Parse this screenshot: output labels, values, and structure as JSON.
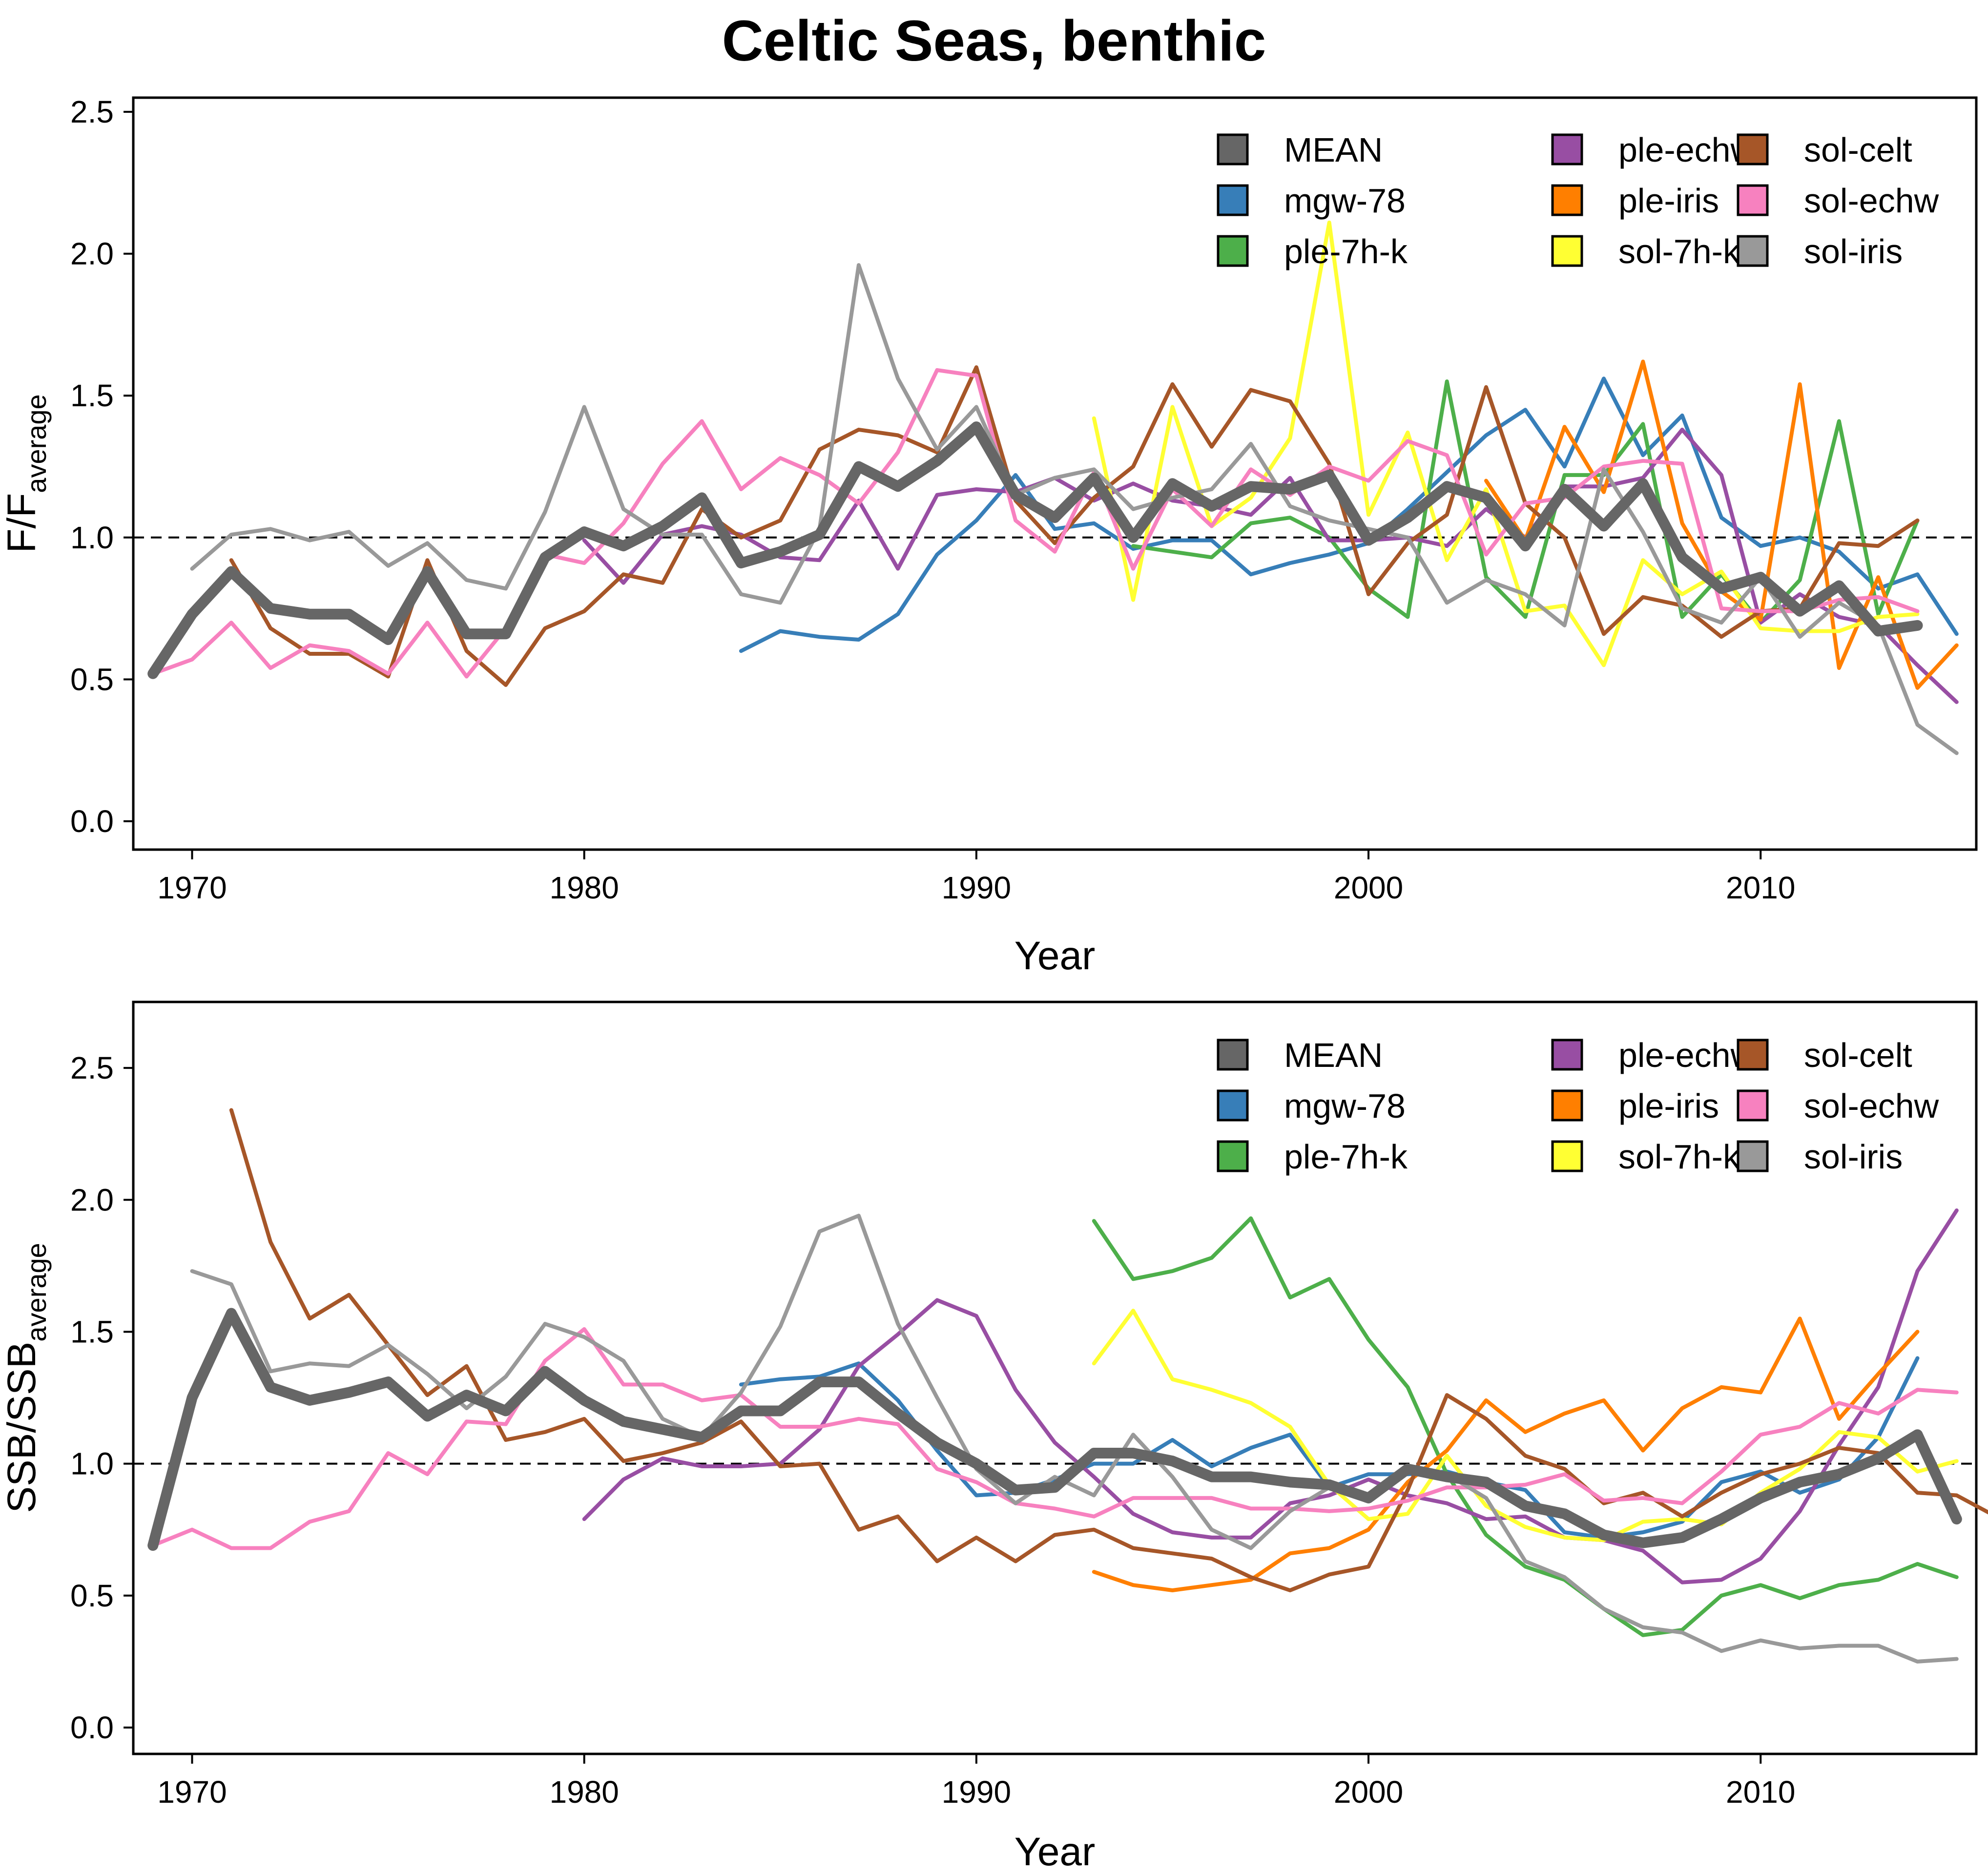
{
  "title": "Celtic Seas, benthic",
  "chart_data": [
    {
      "type": "line",
      "ylabel_main": "F/F",
      "ylabel_sub": "average",
      "xlabel": "Year",
      "xlim": [
        1968.5,
        2015.5
      ],
      "ylim": [
        -0.1,
        2.55
      ],
      "xticks": [
        "1970",
        "1980",
        "1990",
        "2000",
        "2010"
      ],
      "yticks": [
        "0.0",
        "0.5",
        "1.0",
        "1.5",
        "2.0",
        "2.5"
      ],
      "reference_line": 1.0,
      "grid": false,
      "legend_position": "top-right",
      "series": [
        {
          "name": "mgw-78",
          "color": "#377eb8",
          "start": 1984,
          "values": [
            0.6,
            0.67,
            0.65,
            0.64,
            0.73,
            0.94,
            1.06,
            1.22,
            1.03,
            1.05,
            0.96,
            0.99,
            0.99,
            0.87,
            0.91,
            0.94,
            0.98,
            1.1,
            1.23,
            1.36,
            1.45,
            1.25,
            1.56,
            1.29,
            1.43,
            1.07,
            0.97,
            1.0,
            0.95,
            0.82,
            0.87,
            0.66
          ]
        },
        {
          "name": "ple-7h-k",
          "color": "#4daf4a",
          "start": 1994,
          "values": [
            0.97,
            0.95,
            0.93,
            1.05,
            1.07,
            1.0,
            0.82,
            0.72,
            1.55,
            0.86,
            0.72,
            1.22,
            1.22,
            1.4,
            0.72,
            0.87,
            0.7,
            0.85,
            1.41,
            0.73,
            1.06
          ]
        },
        {
          "name": "ple-echw",
          "color": "#984ea3",
          "start": 1980,
          "values": [
            0.99,
            0.84,
            1.01,
            1.04,
            1.01,
            0.93,
            0.92,
            1.13,
            0.89,
            1.15,
            1.17,
            1.16,
            1.21,
            1.13,
            1.19,
            1.13,
            1.11,
            1.08,
            1.21,
            0.99,
            0.99,
            1.0,
            0.97,
            1.1,
            1.0,
            1.18,
            1.18,
            1.21,
            1.38,
            1.22,
            0.7,
            0.8,
            0.72,
            0.69,
            0.55,
            0.42
          ]
        },
        {
          "name": "ple-iris",
          "color": "#ff7f00",
          "start": 2003,
          "values": [
            1.2,
            0.99,
            1.39,
            1.16,
            1.62,
            1.05,
            0.81,
            0.71,
            1.54,
            0.54,
            0.86,
            0.47,
            0.62
          ]
        },
        {
          "name": "sol-7h-k",
          "color": "#ffff33",
          "start": 1993,
          "values": [
            1.42,
            0.78,
            1.46,
            1.04,
            1.14,
            1.35,
            2.11,
            1.08,
            1.37,
            0.92,
            1.17,
            0.74,
            0.76,
            0.55,
            0.92,
            0.8,
            0.88,
            0.68,
            0.67,
            0.67,
            0.72,
            0.73
          ]
        },
        {
          "name": "sol-celt",
          "color": "#a65628",
          "start": 1971,
          "values": [
            0.92,
            0.68,
            0.59,
            0.59,
            0.51,
            0.92,
            0.6,
            0.48,
            0.68,
            0.74,
            0.87,
            0.84,
            1.1,
            1.0,
            1.06,
            1.31,
            1.38,
            1.36,
            1.3,
            1.6,
            1.13,
            0.98,
            1.14,
            1.25,
            1.54,
            1.32,
            1.52,
            1.48,
            1.26,
            0.8,
            0.98,
            1.08,
            1.53,
            1.12,
            1.0,
            0.66,
            0.79,
            0.76,
            0.65,
            0.74,
            0.75,
            0.98,
            0.97,
            1.06
          ]
        },
        {
          "name": "sol-echw",
          "color": "#f781bf",
          "start": 1969,
          "values": [
            0.52,
            0.57,
            0.7,
            0.54,
            0.62,
            0.6,
            0.52,
            0.7,
            0.51,
            0.68,
            0.94,
            0.91,
            1.05,
            1.26,
            1.41,
            1.17,
            1.28,
            1.22,
            1.12,
            1.3,
            1.59,
            1.57,
            1.06,
            0.95,
            1.23,
            0.89,
            1.17,
            1.04,
            1.24,
            1.15,
            1.25,
            1.2,
            1.34,
            1.29,
            0.94,
            1.12,
            1.14,
            1.25,
            1.27,
            1.26,
            0.75,
            0.74,
            0.74,
            0.78,
            0.79,
            0.74
          ]
        },
        {
          "name": "sol-iris",
          "color": "#999999",
          "start": 1970,
          "values": [
            0.89,
            1.01,
            1.03,
            0.99,
            1.02,
            0.9,
            0.98,
            0.85,
            0.82,
            1.09,
            1.46,
            1.1,
            1.01,
            1.01,
            0.8,
            0.77,
            1.03,
            1.96,
            1.56,
            1.31,
            1.46,
            1.15,
            1.21,
            1.24,
            1.1,
            1.14,
            1.17,
            1.33,
            1.11,
            1.06,
            1.03,
            1.0,
            0.77,
            0.85,
            0.8,
            0.69,
            1.24,
            1.02,
            0.75,
            0.7,
            0.86,
            0.65,
            0.77,
            0.69,
            0.34,
            0.24
          ]
        },
        {
          "name": "MEAN",
          "color": "#666666",
          "start": 1969,
          "values": [
            0.52,
            0.73,
            0.88,
            0.75,
            0.73,
            0.73,
            0.64,
            0.88,
            0.66,
            0.66,
            0.93,
            1.02,
            0.97,
            1.04,
            1.14,
            0.91,
            0.95,
            1.01,
            1.25,
            1.18,
            1.27,
            1.39,
            1.15,
            1.07,
            1.21,
            1.0,
            1.19,
            1.11,
            1.18,
            1.17,
            1.22,
            0.99,
            1.07,
            1.18,
            1.14,
            0.97,
            1.17,
            1.04,
            1.19,
            0.93,
            0.82,
            0.86,
            0.74,
            0.83,
            0.67,
            0.69
          ]
        }
      ]
    },
    {
      "type": "line",
      "ylabel_main": "SSB/SSB",
      "ylabel_sub": "average",
      "xlabel": "Year",
      "xlim": [
        1968.5,
        2015.5
      ],
      "ylim": [
        -0.1,
        2.75
      ],
      "xticks": [
        "1970",
        "1980",
        "1990",
        "2000",
        "2010"
      ],
      "yticks": [
        "0.0",
        "0.5",
        "1.0",
        "1.5",
        "2.0",
        "2.5"
      ],
      "reference_line": 1.0,
      "grid": false,
      "legend_position": "top-right",
      "series": [
        {
          "name": "mgw-78",
          "color": "#377eb8",
          "start": 1984,
          "values": [
            1.3,
            1.32,
            1.33,
            1.38,
            1.24,
            1.05,
            0.88,
            0.89,
            0.94,
            1.0,
            1.0,
            1.09,
            0.99,
            1.06,
            1.11,
            0.91,
            0.96,
            0.96,
            0.97,
            0.93,
            0.9,
            0.74,
            0.72,
            0.74,
            0.78,
            0.93,
            0.97,
            0.89,
            0.94,
            1.1,
            1.4
          ]
        },
        {
          "name": "ple-7h-k",
          "color": "#4daf4a",
          "start": 1993,
          "values": [
            1.92,
            1.7,
            1.73,
            1.78,
            1.93,
            1.63,
            1.7,
            1.47,
            1.29,
            0.96,
            0.73,
            0.61,
            0.56,
            0.45,
            0.35,
            0.37,
            0.5,
            0.54,
            0.49,
            0.54,
            0.56,
            0.62,
            0.57
          ]
        },
        {
          "name": "ple-echw",
          "color": "#984ea3",
          "start": 1980,
          "values": [
            0.79,
            0.94,
            1.02,
            0.99,
            0.99,
            1.0,
            1.13,
            1.37,
            1.49,
            1.62,
            1.56,
            1.28,
            1.08,
            0.95,
            0.81,
            0.74,
            0.72,
            0.72,
            0.85,
            0.88,
            0.94,
            0.88,
            0.85,
            0.79,
            0.8,
            0.72,
            0.71,
            0.67,
            0.55,
            0.56,
            0.64,
            0.82,
            1.07,
            1.29,
            1.73,
            1.96
          ]
        },
        {
          "name": "ple-iris",
          "color": "#ff7f00",
          "start": 1993,
          "values": [
            0.59,
            0.54,
            0.52,
            0.54,
            0.56,
            0.66,
            0.68,
            0.75,
            0.93,
            1.05,
            1.24,
            1.12,
            1.19,
            1.24,
            1.05,
            1.21,
            1.29,
            1.27,
            1.55,
            1.17,
            1.34,
            1.5
          ]
        },
        {
          "name": "sol-7h-k",
          "color": "#ffff33",
          "start": 1993,
          "values": [
            1.38,
            1.58,
            1.32,
            1.28,
            1.23,
            1.14,
            0.92,
            0.79,
            0.81,
            1.03,
            0.84,
            0.76,
            0.72,
            0.71,
            0.78,
            0.79,
            0.77,
            0.89,
            0.98,
            1.12,
            1.1,
            0.97,
            1.01
          ]
        },
        {
          "name": "sol-celt",
          "color": "#a65628",
          "start": 1971,
          "values": [
            2.34,
            1.84,
            1.55,
            1.64,
            1.45,
            1.26,
            1.37,
            1.09,
            1.12,
            1.17,
            1.01,
            1.04,
            1.08,
            1.16,
            0.99,
            1.0,
            0.75,
            0.8,
            0.63,
            0.72,
            0.63,
            0.73,
            0.75,
            0.68,
            0.66,
            0.64,
            0.57,
            0.52,
            0.58,
            0.61,
            0.9,
            1.26,
            1.17,
            1.03,
            0.98,
            0.85,
            0.89,
            0.8,
            0.89,
            0.96,
            1.0,
            1.06,
            1.04,
            0.89,
            0.88,
            0.8
          ]
        },
        {
          "name": "sol-echw",
          "color": "#f781bf",
          "start": 1969,
          "values": [
            0.69,
            0.75,
            0.68,
            0.68,
            0.78,
            0.82,
            1.04,
            0.96,
            1.16,
            1.15,
            1.39,
            1.51,
            1.3,
            1.3,
            1.24,
            1.26,
            1.14,
            1.14,
            1.17,
            1.15,
            0.98,
            0.93,
            0.85,
            0.83,
            0.8,
            0.87,
            0.87,
            0.87,
            0.83,
            0.83,
            0.82,
            0.83,
            0.86,
            0.91,
            0.91,
            0.92,
            0.96,
            0.86,
            0.87,
            0.85,
            0.97,
            1.11,
            1.14,
            1.23,
            1.19,
            1.28,
            1.27
          ]
        },
        {
          "name": "sol-iris",
          "color": "#999999",
          "start": 1970,
          "values": [
            1.73,
            1.68,
            1.35,
            1.38,
            1.37,
            1.45,
            1.34,
            1.21,
            1.33,
            1.53,
            1.48,
            1.39,
            1.17,
            1.1,
            1.27,
            1.52,
            1.88,
            1.94,
            1.53,
            1.25,
            0.98,
            0.85,
            0.95,
            0.88,
            1.11,
            0.95,
            0.75,
            0.68,
            0.82,
            0.91,
            0.86,
            0.98,
            0.96,
            0.87,
            0.63,
            0.57,
            0.45,
            0.38,
            0.36,
            0.29,
            0.33,
            0.3,
            0.31,
            0.31,
            0.25,
            0.26
          ]
        },
        {
          "name": "MEAN",
          "color": "#666666",
          "start": 1969,
          "values": [
            0.69,
            1.25,
            1.57,
            1.29,
            1.24,
            1.27,
            1.31,
            1.18,
            1.26,
            1.2,
            1.35,
            1.24,
            1.16,
            1.13,
            1.1,
            1.2,
            1.2,
            1.31,
            1.31,
            1.19,
            1.08,
            1.0,
            0.9,
            0.91,
            1.04,
            1.04,
            1.01,
            0.95,
            0.95,
            0.93,
            0.92,
            0.87,
            0.98,
            0.95,
            0.93,
            0.84,
            0.81,
            0.73,
            0.7,
            0.72,
            0.79,
            0.87,
            0.93,
            0.96,
            1.02,
            1.11,
            0.79
          ]
        }
      ]
    }
  ]
}
